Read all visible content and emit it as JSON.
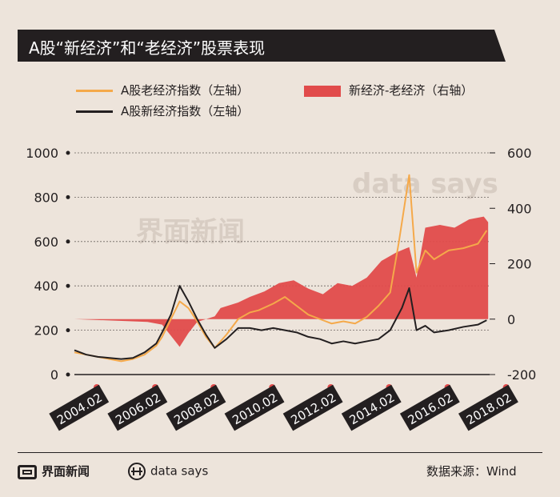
{
  "title": "A股“新经济”和“老经济”股票表现",
  "legend": {
    "old_economy": "A股老经济指数（左轴）",
    "new_minus_old": "新经济-老经济（右轴）",
    "new_economy": "A股新经济指数（左轴）"
  },
  "colors": {
    "old_economy": "#f5a94a",
    "new_economy": "#231f20",
    "spread": "#e14b4b"
  },
  "footer": {
    "brand": "界面新闻",
    "data_says": "data says",
    "source": "数据来源：Wind"
  },
  "chart_data": {
    "type": "line",
    "x_tick_labels": [
      "2004.02",
      "2006.02",
      "2008.02",
      "2010.02",
      "2012.02",
      "2014.02",
      "2016.02",
      "2018.02"
    ],
    "x_range": [
      2004.0,
      2018.2
    ],
    "left_axis": {
      "ticks": [
        0,
        200,
        400,
        600,
        800,
        1000
      ],
      "range": [
        0,
        1000
      ]
    },
    "right_axis": {
      "ticks": [
        -200,
        0,
        200,
        400,
        600
      ],
      "range": [
        -200,
        600
      ]
    },
    "series": [
      {
        "name": "A股老经济指数（左轴）",
        "axis": "left",
        "points": [
          [
            2004.0,
            100
          ],
          [
            2004.4,
            90
          ],
          [
            2004.8,
            80
          ],
          [
            2005.2,
            70
          ],
          [
            2005.6,
            60
          ],
          [
            2006.0,
            70
          ],
          [
            2006.4,
            90
          ],
          [
            2006.8,
            130
          ],
          [
            2007.0,
            170
          ],
          [
            2007.3,
            250
          ],
          [
            2007.6,
            330
          ],
          [
            2007.9,
            300
          ],
          [
            2008.2,
            240
          ],
          [
            2008.5,
            170
          ],
          [
            2008.8,
            120
          ],
          [
            2009.2,
            180
          ],
          [
            2009.6,
            250
          ],
          [
            2010.0,
            280
          ],
          [
            2010.3,
            290
          ],
          [
            2010.8,
            320
          ],
          [
            2011.2,
            350
          ],
          [
            2011.6,
            310
          ],
          [
            2012.0,
            270
          ],
          [
            2012.4,
            250
          ],
          [
            2012.8,
            230
          ],
          [
            2013.2,
            240
          ],
          [
            2013.6,
            230
          ],
          [
            2014.0,
            260
          ],
          [
            2014.4,
            310
          ],
          [
            2014.8,
            370
          ],
          [
            2015.1,
            600
          ],
          [
            2015.45,
            900
          ],
          [
            2015.7,
            460
          ],
          [
            2016.0,
            560
          ],
          [
            2016.3,
            520
          ],
          [
            2016.8,
            560
          ],
          [
            2017.3,
            570
          ],
          [
            2017.8,
            590
          ],
          [
            2018.1,
            650
          ]
        ]
      },
      {
        "name": "A股新经济指数（左轴）",
        "axis": "left",
        "points": [
          [
            2004.0,
            110
          ],
          [
            2004.4,
            90
          ],
          [
            2004.8,
            80
          ],
          [
            2005.2,
            75
          ],
          [
            2005.6,
            70
          ],
          [
            2006.0,
            75
          ],
          [
            2006.4,
            100
          ],
          [
            2006.8,
            140
          ],
          [
            2007.0,
            190
          ],
          [
            2007.3,
            270
          ],
          [
            2007.6,
            400
          ],
          [
            2007.9,
            330
          ],
          [
            2008.2,
            250
          ],
          [
            2008.5,
            180
          ],
          [
            2008.8,
            120
          ],
          [
            2009.2,
            160
          ],
          [
            2009.6,
            210
          ],
          [
            2010.0,
            210
          ],
          [
            2010.4,
            200
          ],
          [
            2010.8,
            210
          ],
          [
            2011.2,
            200
          ],
          [
            2011.6,
            190
          ],
          [
            2012.0,
            170
          ],
          [
            2012.4,
            160
          ],
          [
            2012.8,
            140
          ],
          [
            2013.2,
            150
          ],
          [
            2013.6,
            140
          ],
          [
            2014.0,
            150
          ],
          [
            2014.4,
            160
          ],
          [
            2014.8,
            200
          ],
          [
            2015.2,
            300
          ],
          [
            2015.45,
            390
          ],
          [
            2015.7,
            200
          ],
          [
            2016.0,
            220
          ],
          [
            2016.3,
            190
          ],
          [
            2016.8,
            200
          ],
          [
            2017.3,
            215
          ],
          [
            2017.8,
            225
          ],
          [
            2018.1,
            245
          ]
        ]
      },
      {
        "name": "新经济-老经济（右轴）",
        "type": "area",
        "axis": "right",
        "points": [
          [
            2004.0,
            0
          ],
          [
            2006.5,
            -10
          ],
          [
            2007.0,
            -20
          ],
          [
            2007.3,
            -60
          ],
          [
            2007.6,
            -100
          ],
          [
            2007.9,
            -50
          ],
          [
            2008.2,
            -10
          ],
          [
            2008.8,
            10
          ],
          [
            2009.0,
            40
          ],
          [
            2009.6,
            60
          ],
          [
            2010.0,
            80
          ],
          [
            2010.5,
            100
          ],
          [
            2011.0,
            130
          ],
          [
            2011.5,
            140
          ],
          [
            2012.0,
            110
          ],
          [
            2012.5,
            90
          ],
          [
            2013.0,
            130
          ],
          [
            2013.5,
            120
          ],
          [
            2014.0,
            150
          ],
          [
            2014.5,
            210
          ],
          [
            2015.0,
            240
          ],
          [
            2015.45,
            260
          ],
          [
            2015.7,
            150
          ],
          [
            2016.0,
            330
          ],
          [
            2016.5,
            340
          ],
          [
            2017.0,
            330
          ],
          [
            2017.5,
            360
          ],
          [
            2018.0,
            370
          ],
          [
            2018.15,
            350
          ]
        ]
      }
    ]
  }
}
